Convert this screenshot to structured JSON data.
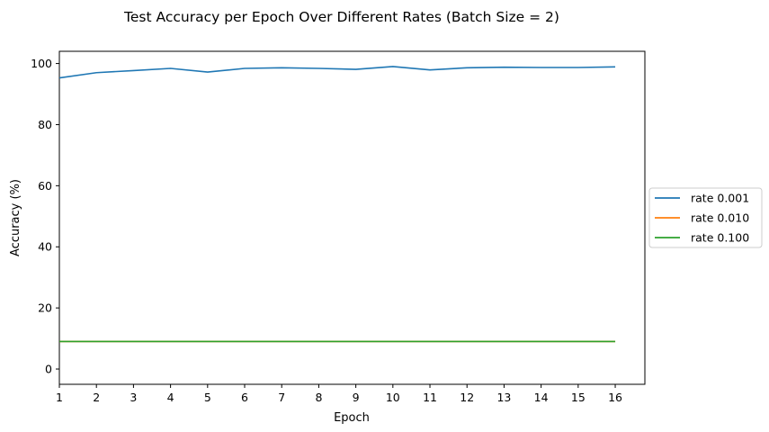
{
  "chart_data": {
    "type": "line",
    "title": "Test Accuracy per Epoch Over Different Rates (Batch Size = 2)",
    "xlabel": "Epoch",
    "ylabel": "Accuracy (%)",
    "xlim": [
      1,
      16.8
    ],
    "ylim": [
      -5,
      104
    ],
    "x": [
      1,
      2,
      3,
      4,
      5,
      6,
      7,
      8,
      9,
      10,
      11,
      12,
      13,
      14,
      15,
      16
    ],
    "xticks": [
      "1",
      "2",
      "3",
      "4",
      "5",
      "6",
      "7",
      "8",
      "9",
      "10",
      "11",
      "12",
      "13",
      "14",
      "15",
      "16"
    ],
    "yticks": [
      0,
      20,
      40,
      60,
      80,
      100
    ],
    "grid": false,
    "legend_position": "outside-right",
    "series": [
      {
        "name": "rate 0.001",
        "color": "#1f77b4",
        "values": [
          95.3,
          97.0,
          97.7,
          98.4,
          97.2,
          98.4,
          98.6,
          98.4,
          98.1,
          99.0,
          97.9,
          98.6,
          98.8,
          98.7,
          98.7,
          98.9
        ]
      },
      {
        "name": "rate 0.010",
        "color": "#ff7f0e",
        "values": [
          9.0,
          9.0,
          9.0,
          9.0,
          9.0,
          9.0,
          9.0,
          9.0,
          9.0,
          9.0,
          9.0,
          9.0,
          9.0,
          9.0,
          9.0,
          9.0
        ]
      },
      {
        "name": "rate 0.100",
        "color": "#2ca02c",
        "values": [
          9.0,
          9.0,
          9.0,
          9.0,
          9.0,
          9.0,
          9.0,
          9.0,
          9.0,
          9.0,
          9.0,
          9.0,
          9.0,
          9.0,
          9.0,
          9.0
        ]
      }
    ]
  }
}
